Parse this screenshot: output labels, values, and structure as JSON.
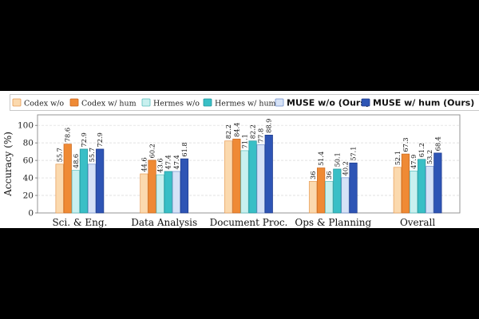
{
  "chart_data": {
    "type": "bar",
    "ylabel": "Accuracy (%)",
    "ylim": [
      0,
      100
    ],
    "yticks": [
      0,
      20,
      40,
      60,
      80,
      100
    ],
    "grid": true,
    "legend_position": "top",
    "categories": [
      "Sci. & Eng.",
      "Data Analysis",
      "Document Proc.",
      "Ops & Planning",
      "Overall"
    ],
    "series": [
      {
        "name": "Codex w/o",
        "style": "serif",
        "fill": "#fbd9ae",
        "stroke": "#e69a52",
        "values": [
          55.7,
          44.6,
          82.2,
          36,
          52.1
        ],
        "labels": [
          "55.7",
          "44.6",
          "82.2",
          "36",
          "52.1"
        ]
      },
      {
        "name": "Codex w/ hum",
        "style": "serif",
        "fill": "#ef8a35",
        "stroke": "#c9661d",
        "values": [
          78.6,
          60.2,
          84.4,
          51.4,
          67.3
        ],
        "labels": [
          "78.6",
          "60.2",
          "84.4",
          "51.4",
          "67.3"
        ]
      },
      {
        "name": "Hermes w/o",
        "style": "serif",
        "fill": "#c8f0ef",
        "stroke": "#58bdbb",
        "values": [
          48.6,
          43.6,
          71.1,
          36,
          47.9
        ],
        "labels": [
          "48.6",
          "43.6",
          "71.1",
          "36",
          "47.9"
        ]
      },
      {
        "name": "Hermes w/ hum",
        "style": "serif",
        "fill": "#39bfc6",
        "stroke": "#21959b",
        "values": [
          72.9,
          47.4,
          82.2,
          50.1,
          61.2
        ],
        "labels": [
          "72.9",
          "47.4",
          "82.2",
          "50.1",
          "61.2"
        ]
      },
      {
        "name": "MUSE w/o (Ours)",
        "style": "bold",
        "fill": "#d6e2f6",
        "stroke": "#6f8fcc",
        "values": [
          55.7,
          47.4,
          77.8,
          40.2,
          53.2
        ],
        "labels": [
          "55.7",
          "47.4",
          "77.8",
          "40.2",
          "53.2"
        ]
      },
      {
        "name": "MUSE w/ hum (Ours)",
        "style": "bold",
        "fill": "#2e55b5",
        "stroke": "#1d3a8a",
        "values": [
          72.9,
          61.8,
          88.9,
          57.1,
          68.4
        ],
        "labels": [
          "72.9",
          "61.8",
          "88.9",
          "57.1",
          "68.4"
        ]
      }
    ]
  }
}
